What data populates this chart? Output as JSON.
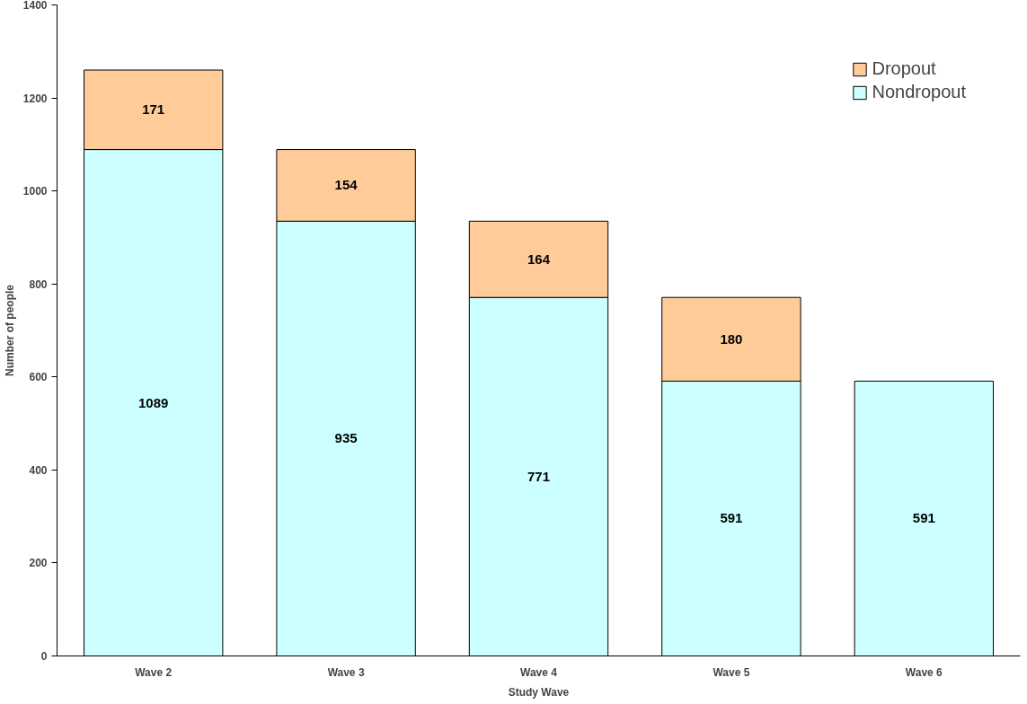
{
  "chart_data": {
    "type": "bar",
    "stacked": true,
    "xlabel": "Study Wave",
    "ylabel": "Number of people",
    "categories": [
      "Wave 2",
      "Wave 3",
      "Wave 4",
      "Wave 5",
      "Wave 6"
    ],
    "series": [
      {
        "name": "Nondropout",
        "color": "#ccffff",
        "values": [
          1089,
          935,
          771,
          591,
          591
        ]
      },
      {
        "name": "Dropout",
        "color": "#ffcc99",
        "values": [
          171,
          154,
          164,
          180,
          null
        ]
      }
    ],
    "ylim": [
      0,
      1400
    ],
    "yticks": [
      0,
      200,
      400,
      600,
      800,
      1000,
      1200,
      1400
    ],
    "grid": false,
    "legend": "top right",
    "data_labels": true
  }
}
